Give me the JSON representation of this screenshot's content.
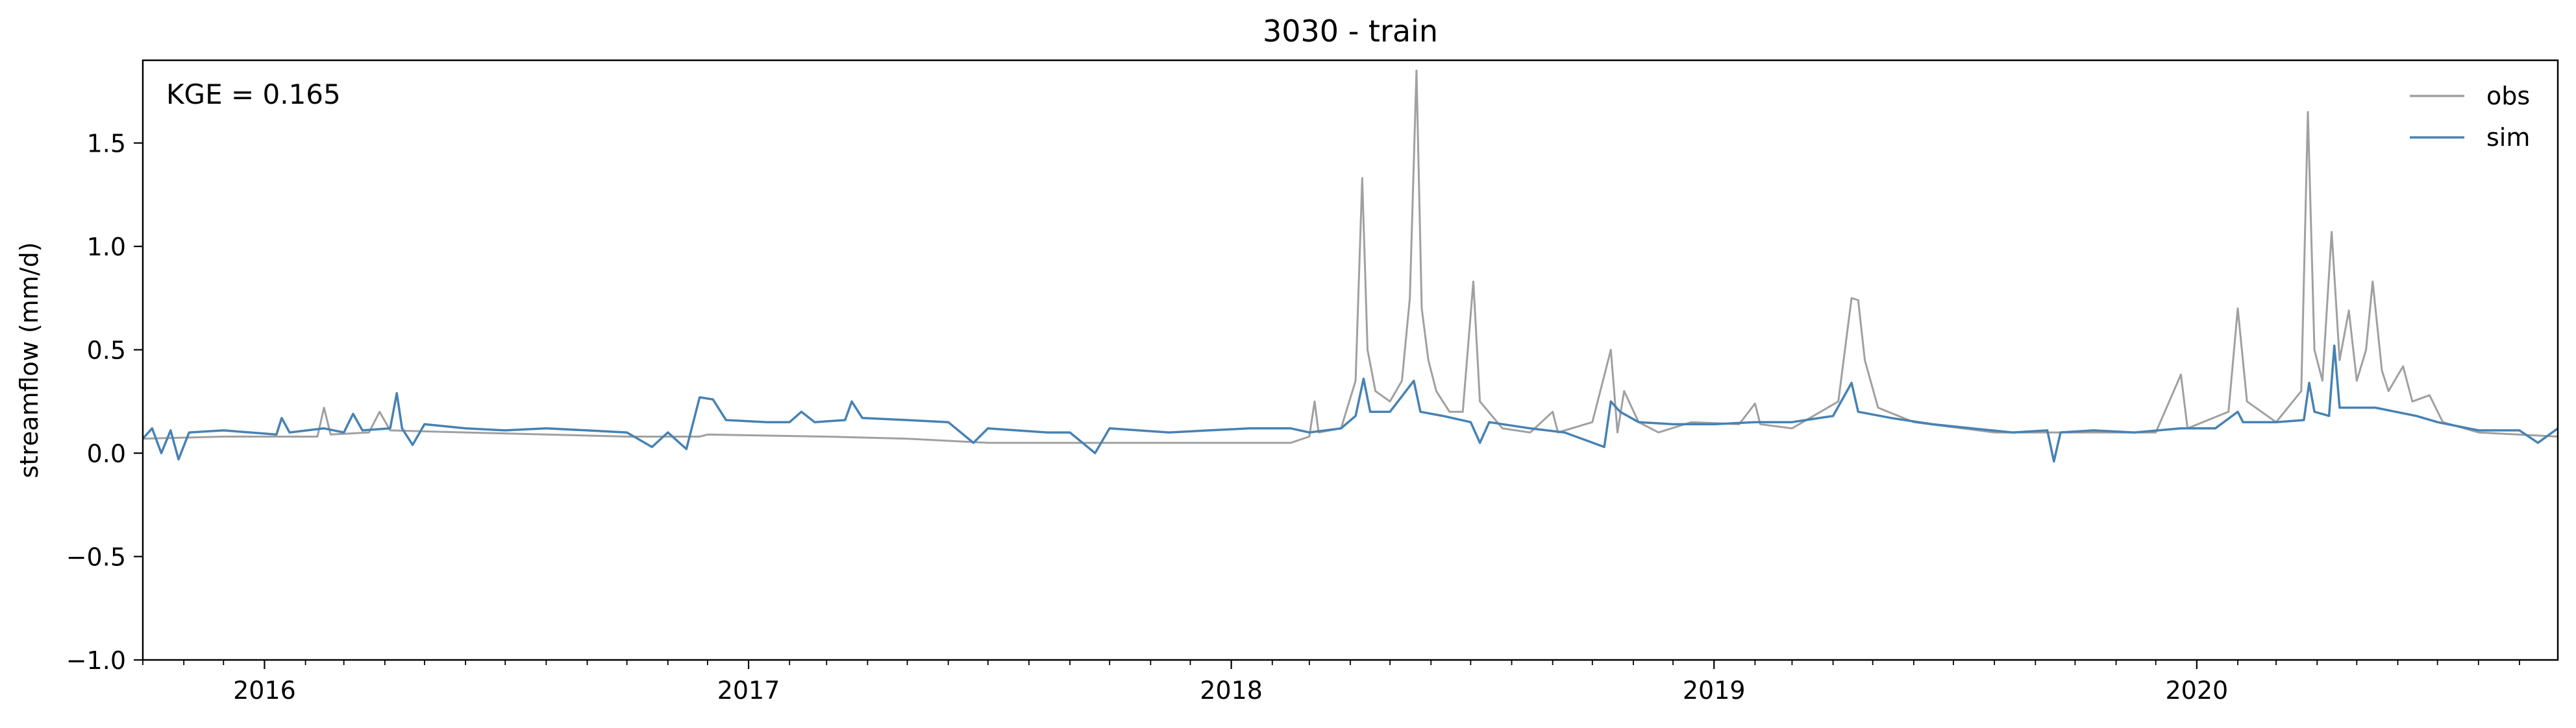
{
  "chart_data": {
    "type": "line",
    "title": "3030 - train",
    "xlabel": "",
    "ylabel": "streamflow (mm/d)",
    "annotation": "KGE = 0.165",
    "xlim": [
      "2015-10-01",
      "2020-09-30"
    ],
    "ylim": [
      -1.0,
      1.9
    ],
    "x_ticks": [
      "2016-01-01",
      "2017-01-01",
      "2018-01-01",
      "2019-01-01",
      "2020-01-01"
    ],
    "x_tick_labels": [
      "2016",
      "2017",
      "2018",
      "2019",
      "2020"
    ],
    "y_ticks": [
      -1.0,
      -0.5,
      0.0,
      0.5,
      1.0,
      1.5
    ],
    "y_tick_labels": [
      "−1.0",
      "−0.5",
      "0.0",
      "0.5",
      "1.0",
      "1.5"
    ],
    "grid": false,
    "legend_position": "top-right",
    "series": [
      {
        "name": "obs",
        "color": "#a0a0a0",
        "points": [
          [
            "2015-10-01",
            0.07
          ],
          [
            "2015-12-01",
            0.08
          ],
          [
            "2016-02-10",
            0.08
          ],
          [
            "2016-02-15",
            0.22
          ],
          [
            "2016-02-20",
            0.09
          ],
          [
            "2016-03-20",
            0.1
          ],
          [
            "2016-03-28",
            0.2
          ],
          [
            "2016-04-05",
            0.11
          ],
          [
            "2016-06-01",
            0.1
          ],
          [
            "2016-08-01",
            0.09
          ],
          [
            "2016-10-01",
            0.08
          ],
          [
            "2016-11-25",
            0.08
          ],
          [
            "2016-12-01",
            0.09
          ],
          [
            "2017-03-01",
            0.08
          ],
          [
            "2017-05-01",
            0.07
          ],
          [
            "2017-07-01",
            0.05
          ],
          [
            "2017-09-01",
            0.05
          ],
          [
            "2017-11-01",
            0.05
          ],
          [
            "2018-01-01",
            0.05
          ],
          [
            "2018-02-15",
            0.05
          ],
          [
            "2018-03-01",
            0.08
          ],
          [
            "2018-03-05",
            0.25
          ],
          [
            "2018-03-08",
            0.1
          ],
          [
            "2018-03-25",
            0.12
          ],
          [
            "2018-04-05",
            0.35
          ],
          [
            "2018-04-10",
            1.33
          ],
          [
            "2018-04-14",
            0.5
          ],
          [
            "2018-04-20",
            0.3
          ],
          [
            "2018-05-01",
            0.25
          ],
          [
            "2018-05-10",
            0.35
          ],
          [
            "2018-05-16",
            0.75
          ],
          [
            "2018-05-21",
            1.85
          ],
          [
            "2018-05-25",
            0.7
          ],
          [
            "2018-05-30",
            0.45
          ],
          [
            "2018-06-05",
            0.3
          ],
          [
            "2018-06-15",
            0.2
          ],
          [
            "2018-06-25",
            0.2
          ],
          [
            "2018-07-03",
            0.83
          ],
          [
            "2018-07-08",
            0.25
          ],
          [
            "2018-07-25",
            0.12
          ],
          [
            "2018-08-15",
            0.1
          ],
          [
            "2018-09-01",
            0.2
          ],
          [
            "2018-09-05",
            0.1
          ],
          [
            "2018-10-01",
            0.15
          ],
          [
            "2018-10-15",
            0.5
          ],
          [
            "2018-10-20",
            0.1
          ],
          [
            "2018-10-25",
            0.3
          ],
          [
            "2018-11-05",
            0.15
          ],
          [
            "2018-11-20",
            0.1
          ],
          [
            "2018-12-15",
            0.15
          ],
          [
            "2019-01-20",
            0.14
          ],
          [
            "2019-02-01",
            0.24
          ],
          [
            "2019-02-05",
            0.14
          ],
          [
            "2019-03-01",
            0.12
          ],
          [
            "2019-04-05",
            0.25
          ],
          [
            "2019-04-15",
            0.75
          ],
          [
            "2019-04-20",
            0.74
          ],
          [
            "2019-04-25",
            0.45
          ],
          [
            "2019-05-05",
            0.22
          ],
          [
            "2019-06-01",
            0.15
          ],
          [
            "2019-08-01",
            0.1
          ],
          [
            "2019-10-01",
            0.1
          ],
          [
            "2019-12-01",
            0.1
          ],
          [
            "2019-12-20",
            0.38
          ],
          [
            "2019-12-25",
            0.12
          ],
          [
            "2020-01-25",
            0.2
          ],
          [
            "2020-02-01",
            0.7
          ],
          [
            "2020-02-08",
            0.25
          ],
          [
            "2020-03-01",
            0.15
          ],
          [
            "2020-03-20",
            0.3
          ],
          [
            "2020-03-25",
            1.65
          ],
          [
            "2020-03-30",
            0.5
          ],
          [
            "2020-04-05",
            0.35
          ],
          [
            "2020-04-12",
            1.07
          ],
          [
            "2020-04-18",
            0.45
          ],
          [
            "2020-04-25",
            0.69
          ],
          [
            "2020-05-01",
            0.35
          ],
          [
            "2020-05-08",
            0.5
          ],
          [
            "2020-05-13",
            0.83
          ],
          [
            "2020-05-20",
            0.4
          ],
          [
            "2020-05-25",
            0.3
          ],
          [
            "2020-06-05",
            0.42
          ],
          [
            "2020-06-12",
            0.25
          ],
          [
            "2020-06-25",
            0.28
          ],
          [
            "2020-07-05",
            0.15
          ],
          [
            "2020-08-01",
            0.1
          ],
          [
            "2020-09-30",
            0.08
          ]
        ]
      },
      {
        "name": "sim",
        "color": "#4682b4",
        "points": [
          [
            "2015-10-01",
            0.07
          ],
          [
            "2015-10-08",
            0.12
          ],
          [
            "2015-10-15",
            0.0
          ],
          [
            "2015-10-22",
            0.11
          ],
          [
            "2015-10-28",
            -0.03
          ],
          [
            "2015-11-05",
            0.1
          ],
          [
            "2015-12-01",
            0.11
          ],
          [
            "2016-01-10",
            0.09
          ],
          [
            "2016-01-14",
            0.17
          ],
          [
            "2016-01-20",
            0.1
          ],
          [
            "2016-02-15",
            0.12
          ],
          [
            "2016-03-01",
            0.1
          ],
          [
            "2016-03-08",
            0.19
          ],
          [
            "2016-03-15",
            0.11
          ],
          [
            "2016-04-05",
            0.12
          ],
          [
            "2016-04-10",
            0.29
          ],
          [
            "2016-04-14",
            0.12
          ],
          [
            "2016-04-22",
            0.04
          ],
          [
            "2016-05-01",
            0.14
          ],
          [
            "2016-06-01",
            0.12
          ],
          [
            "2016-07-01",
            0.11
          ],
          [
            "2016-08-01",
            0.12
          ],
          [
            "2016-09-01",
            0.11
          ],
          [
            "2016-10-01",
            0.1
          ],
          [
            "2016-10-20",
            0.03
          ],
          [
            "2016-11-01",
            0.1
          ],
          [
            "2016-11-15",
            0.02
          ],
          [
            "2016-11-25",
            0.27
          ],
          [
            "2016-12-05",
            0.26
          ],
          [
            "2016-12-15",
            0.16
          ],
          [
            "2017-01-15",
            0.15
          ],
          [
            "2017-02-01",
            0.15
          ],
          [
            "2017-02-10",
            0.2
          ],
          [
            "2017-02-20",
            0.15
          ],
          [
            "2017-03-15",
            0.16
          ],
          [
            "2017-03-20",
            0.25
          ],
          [
            "2017-03-28",
            0.17
          ],
          [
            "2017-05-01",
            0.16
          ],
          [
            "2017-06-01",
            0.15
          ],
          [
            "2017-06-20",
            0.05
          ],
          [
            "2017-07-01",
            0.12
          ],
          [
            "2017-08-15",
            0.1
          ],
          [
            "2017-09-01",
            0.1
          ],
          [
            "2017-09-20",
            0.0
          ],
          [
            "2017-10-01",
            0.12
          ],
          [
            "2017-11-15",
            0.1
          ],
          [
            "2017-12-15",
            0.11
          ],
          [
            "2018-01-15",
            0.12
          ],
          [
            "2018-02-15",
            0.12
          ],
          [
            "2018-03-01",
            0.1
          ],
          [
            "2018-03-25",
            0.12
          ],
          [
            "2018-04-05",
            0.18
          ],
          [
            "2018-04-11",
            0.36
          ],
          [
            "2018-04-16",
            0.2
          ],
          [
            "2018-05-01",
            0.2
          ],
          [
            "2018-05-19",
            0.35
          ],
          [
            "2018-05-24",
            0.2
          ],
          [
            "2018-06-10",
            0.18
          ],
          [
            "2018-07-01",
            0.15
          ],
          [
            "2018-07-08",
            0.05
          ],
          [
            "2018-07-15",
            0.15
          ],
          [
            "2018-08-15",
            0.12
          ],
          [
            "2018-09-10",
            0.1
          ],
          [
            "2018-10-10",
            0.03
          ],
          [
            "2018-10-15",
            0.25
          ],
          [
            "2018-10-22",
            0.2
          ],
          [
            "2018-11-05",
            0.15
          ],
          [
            "2018-12-01",
            0.14
          ],
          [
            "2019-01-01",
            0.14
          ],
          [
            "2019-02-01",
            0.15
          ],
          [
            "2019-03-01",
            0.15
          ],
          [
            "2019-04-01",
            0.18
          ],
          [
            "2019-04-15",
            0.34
          ],
          [
            "2019-04-20",
            0.2
          ],
          [
            "2019-05-15",
            0.17
          ],
          [
            "2019-06-15",
            0.14
          ],
          [
            "2019-07-15",
            0.12
          ],
          [
            "2019-08-15",
            0.1
          ],
          [
            "2019-09-10",
            0.11
          ],
          [
            "2019-09-15",
            -0.04
          ],
          [
            "2019-09-20",
            0.1
          ],
          [
            "2019-10-15",
            0.11
          ],
          [
            "2019-11-15",
            0.1
          ],
          [
            "2019-12-20",
            0.12
          ],
          [
            "2020-01-15",
            0.12
          ],
          [
            "2020-02-01",
            0.2
          ],
          [
            "2020-02-05",
            0.15
          ],
          [
            "2020-03-01",
            0.15
          ],
          [
            "2020-03-22",
            0.16
          ],
          [
            "2020-03-26",
            0.34
          ],
          [
            "2020-03-30",
            0.2
          ],
          [
            "2020-04-10",
            0.18
          ],
          [
            "2020-04-14",
            0.52
          ],
          [
            "2020-04-18",
            0.22
          ],
          [
            "2020-05-15",
            0.22
          ],
          [
            "2020-06-15",
            0.18
          ],
          [
            "2020-07-01",
            0.15
          ],
          [
            "2020-08-01",
            0.11
          ],
          [
            "2020-09-01",
            0.11
          ],
          [
            "2020-09-15",
            0.05
          ],
          [
            "2020-09-30",
            0.12
          ]
        ]
      }
    ]
  }
}
